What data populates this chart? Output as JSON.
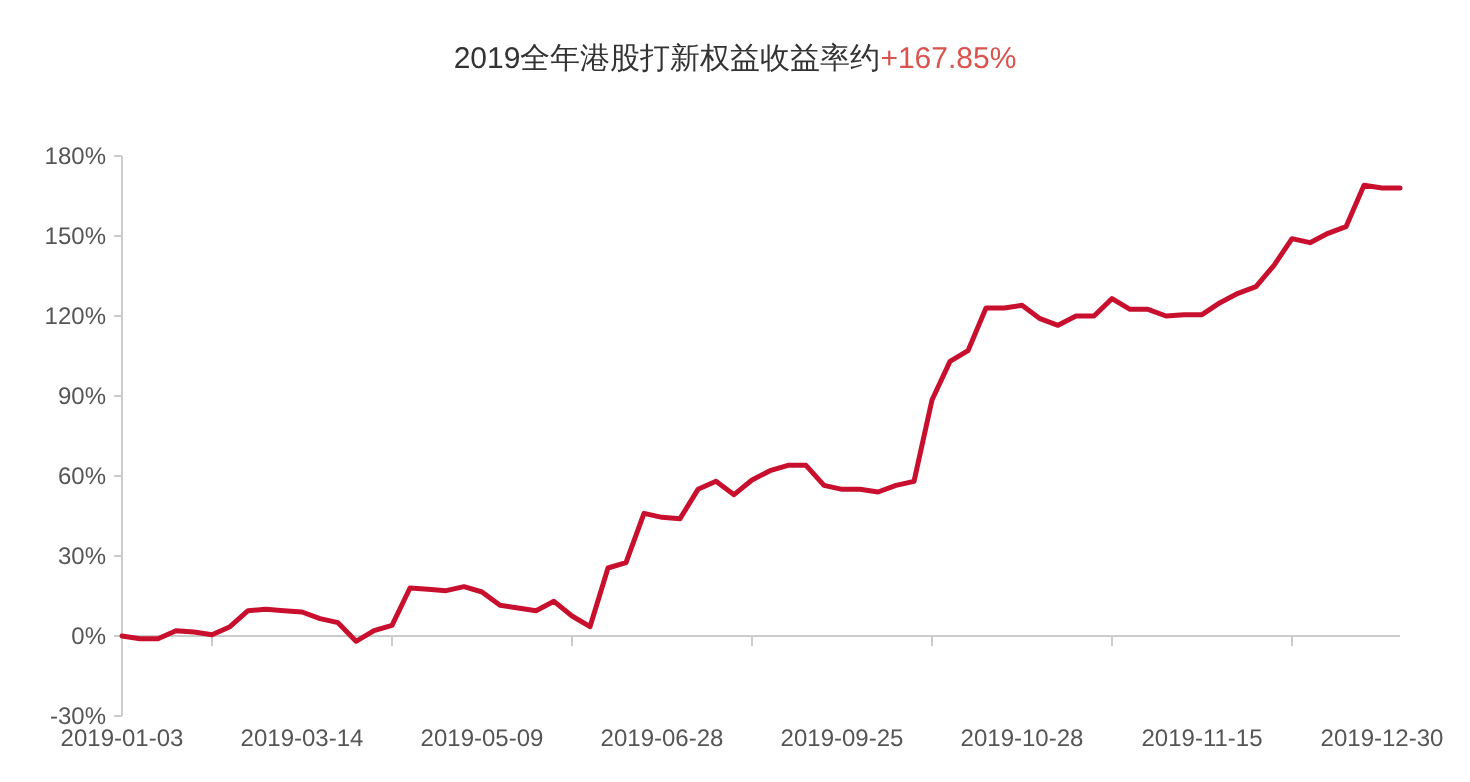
{
  "chart_data": {
    "type": "line",
    "title": "2019全年港股打新权益收益率约",
    "annotations": [
      "+167.85%"
    ],
    "categories": [
      "2019-01-03",
      null,
      null,
      null,
      null,
      null,
      null,
      null,
      null,
      null,
      "2019-03-14",
      null,
      null,
      null,
      null,
      null,
      null,
      null,
      null,
      null,
      "2019-05-09",
      null,
      null,
      null,
      null,
      null,
      null,
      null,
      null,
      null,
      "2019-06-28",
      null,
      null,
      null,
      null,
      null,
      null,
      null,
      null,
      null,
      "2019-09-25",
      null,
      null,
      null,
      null,
      null,
      null,
      null,
      null,
      null,
      "2019-10-28",
      null,
      null,
      null,
      null,
      null,
      null,
      null,
      null,
      null,
      "2019-11-15",
      null,
      null,
      null,
      null,
      null,
      null,
      null,
      null,
      null,
      "2019-12-30",
      null
    ],
    "series": [
      {
        "color": "#c8102e",
        "values": [
          0,
          -1,
          -1,
          2,
          1.5,
          0.5,
          3.5,
          9.5,
          10,
          9.5,
          9,
          6.5,
          5,
          -2,
          2,
          4,
          18,
          17.5,
          17,
          18.5,
          16.5,
          11.5,
          10.5,
          9.5,
          13,
          7.5,
          3.5,
          25.5,
          27.5,
          46,
          44.5,
          44,
          55,
          58,
          53,
          58.5,
          62,
          64,
          64,
          56.5,
          55,
          55,
          54,
          56.5,
          58,
          88.5,
          103,
          107,
          123,
          123,
          124,
          119,
          116.5,
          120,
          120,
          126.5,
          122.5,
          122.5,
          120,
          120.5,
          120.5,
          125,
          128.5,
          131,
          139,
          149,
          147.5,
          151,
          153.5,
          169,
          168,
          168
        ]
      }
    ],
    "ylim": [
      -30,
      180
    ],
    "yticks": [
      {
        "value": -30,
        "label": "-30%"
      },
      {
        "value": 0,
        "label": "0%"
      },
      {
        "value": 30,
        "label": "30%"
      },
      {
        "value": 60,
        "label": "60%"
      },
      {
        "value": 90,
        "label": "90%"
      },
      {
        "value": 120,
        "label": "120%"
      },
      {
        "value": 150,
        "label": "150%"
      },
      {
        "value": 180,
        "label": "180%"
      }
    ],
    "marker": "none",
    "line_style": "solid"
  }
}
